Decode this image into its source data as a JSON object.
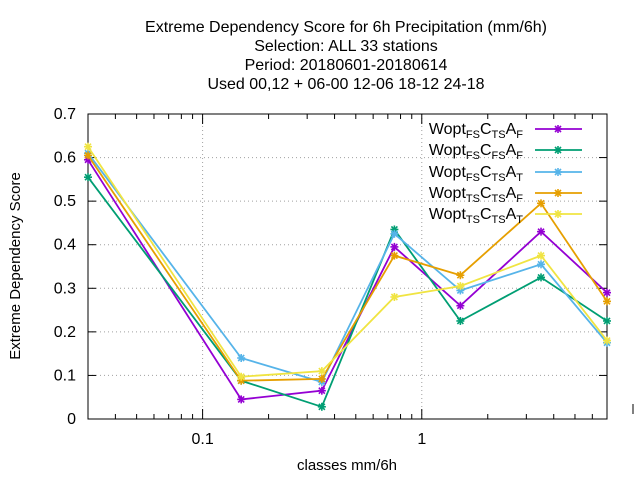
{
  "chart_data": {
    "type": "line",
    "title": [
      "Extreme Dependency Score  for 6h Precipitation (mm/6h)",
      "Selection: ALL     33 stations",
      "Period: 20180601-20180614",
      "Used  00,12  + 06-00 12-06 18-12 24-18"
    ],
    "xlabel": "classes mm/6h",
    "ylabel": "Extreme Dependency Score",
    "x_scale": "log",
    "xlim": [
      0.03,
      7.0
    ],
    "ylim": [
      0,
      0.7
    ],
    "x_tick_labels": [
      {
        "value": 0.1,
        "label": "0.1"
      },
      {
        "value": 1,
        "label": "1"
      }
    ],
    "y_ticks": [
      0,
      0.1,
      0.2,
      0.3,
      0.4,
      0.5,
      0.6,
      0.7
    ],
    "y_tick_labels": [
      "0",
      "0.1",
      "0.2",
      "0.3",
      "0.4",
      "0.5",
      "0.6",
      "0.7"
    ],
    "grid": true,
    "legend_position": "top-right",
    "x": [
      0.03,
      0.15,
      0.35,
      0.75,
      1.5,
      3.5,
      7.0
    ],
    "series": [
      {
        "name_parts": [
          [
            "Wopt",
            ""
          ],
          [
            "FS",
            "sub"
          ],
          [
            "C",
            ""
          ],
          [
            "TS",
            "sub"
          ],
          [
            "A",
            ""
          ],
          [
            "F",
            "sub"
          ]
        ],
        "color": "#9400d3",
        "values": [
          0.595,
          0.045,
          0.065,
          0.395,
          0.26,
          0.43,
          0.29
        ]
      },
      {
        "name_parts": [
          [
            "Wopt",
            ""
          ],
          [
            "FS",
            "sub"
          ],
          [
            "C",
            ""
          ],
          [
            "FS",
            "sub"
          ],
          [
            "A",
            ""
          ],
          [
            "F",
            "sub"
          ]
        ],
        "color": "#009e73",
        "values": [
          0.555,
          0.088,
          0.028,
          0.435,
          0.225,
          0.325,
          0.225
        ]
      },
      {
        "name_parts": [
          [
            "Wopt",
            ""
          ],
          [
            "FS",
            "sub"
          ],
          [
            "C",
            ""
          ],
          [
            "TS",
            "sub"
          ],
          [
            "A",
            ""
          ],
          [
            "T",
            "sub"
          ]
        ],
        "color": "#56b4e9",
        "values": [
          0.61,
          0.14,
          0.085,
          0.425,
          0.295,
          0.355,
          0.175
        ]
      },
      {
        "name_parts": [
          [
            "Wopt",
            ""
          ],
          [
            "TS",
            "sub"
          ],
          [
            "C",
            ""
          ],
          [
            "TS",
            "sub"
          ],
          [
            "A",
            ""
          ],
          [
            "F",
            "sub"
          ]
        ],
        "color": "#e69f00",
        "values": [
          0.605,
          0.088,
          0.092,
          0.375,
          0.33,
          0.495,
          0.27
        ]
      },
      {
        "name_parts": [
          [
            "Wopt",
            ""
          ],
          [
            "TS",
            "sub"
          ],
          [
            "C",
            ""
          ],
          [
            "TS",
            "sub"
          ],
          [
            "A",
            ""
          ],
          [
            "T",
            "sub"
          ]
        ],
        "color": "#f0e442",
        "values": [
          0.625,
          0.097,
          0.11,
          0.28,
          0.305,
          0.375,
          0.18
        ]
      }
    ]
  }
}
